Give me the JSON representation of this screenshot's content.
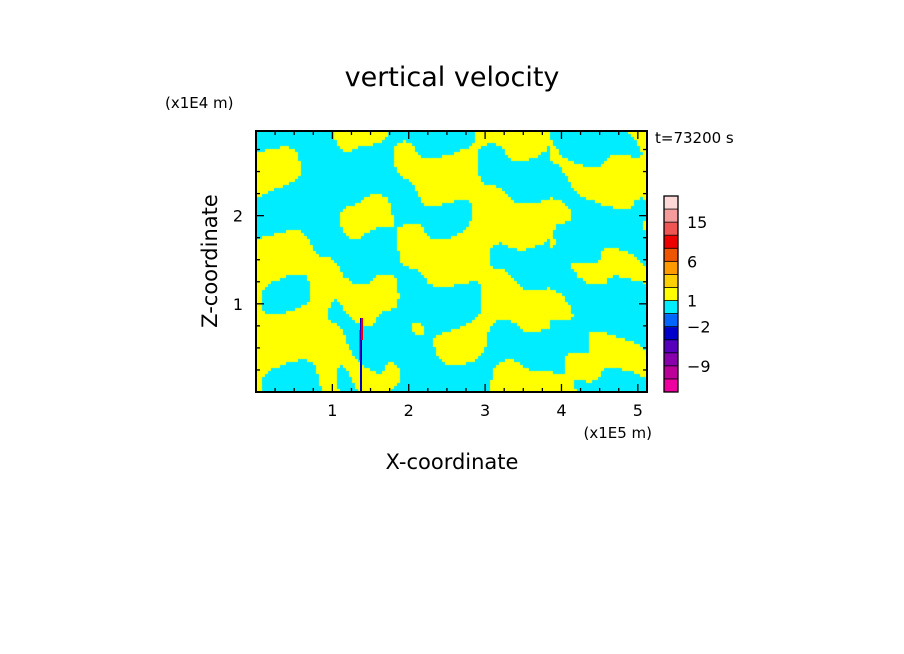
{
  "chart_data": {
    "type": "heatmap",
    "title": "vertical velocity",
    "time_label": "t=73200 s",
    "xlabel": "X-coordinate",
    "ylabel": "Z-coordinate",
    "x_unit": "(x1E5 m)",
    "y_unit": "(x1E4 m)",
    "xlim": [
      0,
      5.12
    ],
    "ylim": [
      0,
      2.96
    ],
    "x_ticks": [
      1,
      2,
      3,
      4,
      5
    ],
    "y_ticks": [
      1,
      2
    ],
    "x_minor_step": 0.25,
    "y_minor_step": 0.25,
    "field_colors": {
      "positive": "#ffff00",
      "negative": "#00ecff"
    },
    "colorbar": {
      "levels": [
        "-15",
        "-12",
        "-9",
        "-6",
        "-3",
        "-2",
        "-1",
        "1",
        "2",
        "3",
        "6",
        "9",
        "12",
        "15",
        "18",
        "21"
      ],
      "colors": [
        "#ee00a0",
        "#bb0099",
        "#8800aa",
        "#5500bb",
        "#0000cc",
        "#0066ff",
        "#00ecff",
        "#ffff00",
        "#ffd000",
        "#ff9900",
        "#ee5500",
        "#ee0000",
        "#ee5555",
        "#f59b9b",
        "#fcd8d8"
      ],
      "tick_labels": [
        {
          "value": "-9",
          "label": "−9"
        },
        {
          "value": "-2",
          "label": "−2"
        },
        {
          "value": "1",
          "label": "1"
        },
        {
          "value": "6",
          "label": "6"
        },
        {
          "value": "15",
          "label": "15"
        }
      ]
    }
  }
}
